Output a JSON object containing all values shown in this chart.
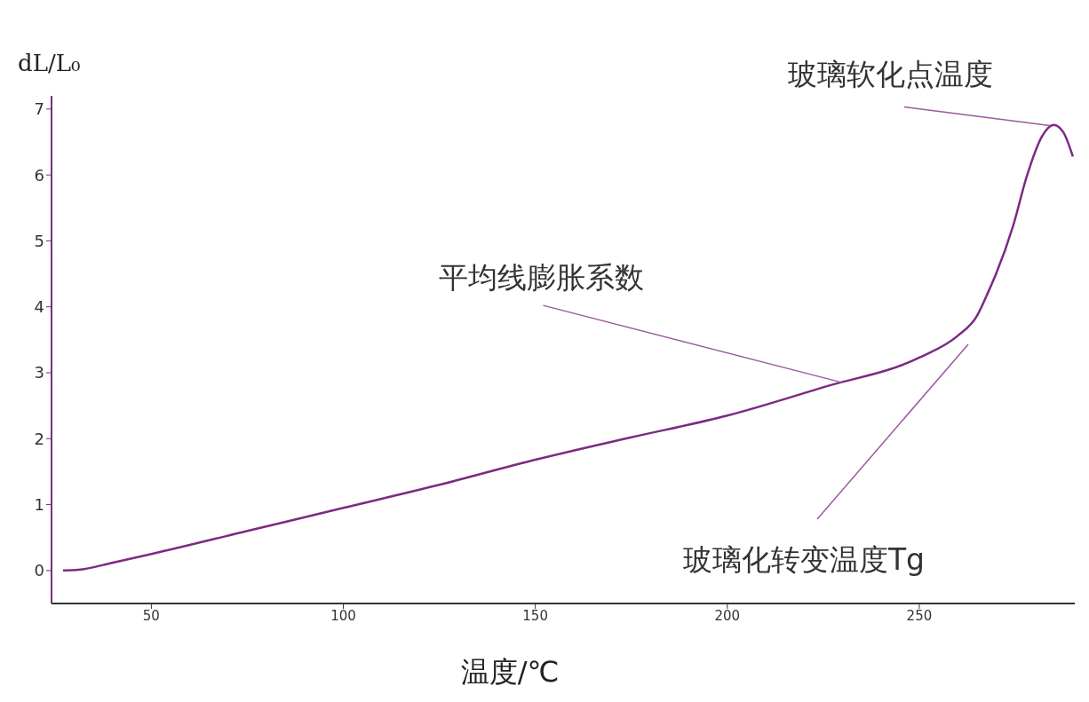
{
  "chart_data": {
    "type": "line",
    "xlabel": "温度/℃",
    "ylabel": "dL/L₀",
    "x": [
      27,
      31,
      40,
      50,
      75,
      100,
      125,
      150,
      175,
      200,
      225,
      250,
      260,
      265,
      268,
      270,
      274.5,
      278,
      282,
      285,
      287.5,
      290
    ],
    "series": [
      {
        "color": "#7b2a83",
        "values": [
          0,
          0.01,
          0.12,
          0.25,
          0.6,
          0.95,
          1.3,
          1.68,
          2.02,
          2.35,
          2.78,
          3.23,
          3.56,
          3.86,
          4.23,
          4.5,
          5.24,
          5.98,
          6.59,
          6.76,
          6.65,
          6.28
        ]
      }
    ],
    "xlim": [
      24,
      290.5
    ],
    "ylim": [
      -0.5,
      7.2
    ],
    "xticks": [
      50,
      100,
      150,
      200,
      250
    ],
    "yticks": [
      0,
      1,
      2,
      3,
      4,
      5,
      6,
      7
    ],
    "marker": "none",
    "line_style": "solid",
    "annotations": [
      {
        "text": "玻璃软化点温度",
        "x": 284,
        "y": 6.75
      },
      {
        "text": "平均线膨胀系数",
        "x": 230,
        "y": 2.85
      },
      "玻璃化转变温度Tg"
    ]
  }
}
